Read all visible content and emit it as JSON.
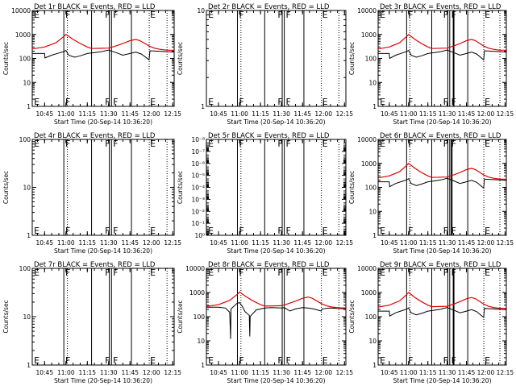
{
  "colors": {
    "events": "#000000",
    "lld": "#e00000",
    "frame": "#000000",
    "background": "#ffffff"
  },
  "common": {
    "xlabel": "Start Time (20-Sep-14 10:36:20)",
    "ylabel": "Counts/sec",
    "x_tick_labels": [
      "10:45",
      "11:00",
      "11:15",
      "11:30",
      "11:45",
      "12:00",
      "12:15"
    ],
    "x_tick_minutes": [
      645,
      660,
      675,
      690,
      705,
      720,
      735
    ],
    "x_range_minutes": [
      636.33,
      736
    ]
  },
  "markers": {
    "solid_lines": [
      658.5,
      678,
      690.5,
      692,
      706
    ],
    "dotted_lines": [
      661,
      718.5,
      731
    ],
    "labels": [
      {
        "text": "E",
        "x": 637,
        "align": "start"
      },
      {
        "text": "F",
        "x": 659,
        "align": "start"
      },
      {
        "text": "F",
        "x": 691.5,
        "align": "end"
      },
      {
        "text": "F",
        "x": 692.5,
        "align": "start"
      },
      {
        "text": "E",
        "x": 718.5,
        "align": "start"
      }
    ]
  },
  "chart_data": [
    {
      "type": "line",
      "title": "Det 1r BLACK = Events, RED = LLD",
      "yscale": "log",
      "ylim": [
        1,
        10000
      ],
      "y_ticks": [
        1,
        10,
        100,
        1000,
        10000
      ],
      "y_tick_labels": [
        "1",
        "10",
        "100",
        "1000",
        "10000"
      ],
      "profile": "A",
      "lld_peak": 1000,
      "events_peak": 160,
      "events_drop": 105,
      "third_line": 0
    },
    {
      "type": "line",
      "title": "Det 2r BLACK = Events, RED = LLD",
      "yscale": "log",
      "ylim": [
        1,
        10
      ],
      "y_ticks": [
        1,
        10
      ],
      "y_tick_labels": [
        "1",
        "10"
      ],
      "profile": "none"
    },
    {
      "type": "line",
      "title": "Det 3r BLACK = Events, RED = LLD",
      "yscale": "log",
      "ylim": [
        1,
        10000
      ],
      "y_ticks": [
        1,
        10,
        100,
        1000,
        10000
      ],
      "y_tick_labels": [
        "1",
        "10",
        "100",
        "1000",
        "10000"
      ],
      "profile": "A",
      "lld_peak": 1000,
      "events_peak": 160,
      "events_drop": 100,
      "third_line": 695
    },
    {
      "type": "line",
      "title": "Det 4r BLACK = Events, RED = LLD",
      "yscale": "log",
      "ylim": [
        1,
        100
      ],
      "y_ticks": [
        1,
        10,
        100
      ],
      "y_tick_labels": [
        "1",
        "10",
        "100"
      ],
      "profile": "none"
    },
    {
      "type": "line",
      "title": "Det 5r BLACK = Events, RED = LLD",
      "yscale": "log",
      "ylim": [
        1,
        1e-08
      ],
      "y_ticks": [
        1,
        0.1,
        0.01,
        0.001,
        0.0001,
        1e-05,
        1e-06,
        1e-07,
        1e-08
      ],
      "y_tick_labels": [
        "10⁰",
        "10⁻¹",
        "10⁻²",
        "10⁻³",
        "10⁻⁴",
        "10⁻⁵",
        "10⁻⁶",
        "10⁻⁷",
        "10⁻⁸"
      ],
      "profile": "none"
    },
    {
      "type": "line",
      "title": "Det 6r BLACK = Events, RED = LLD",
      "yscale": "log",
      "ylim": [
        1,
        10000
      ],
      "y_ticks": [
        1,
        10,
        100,
        1000,
        10000
      ],
      "y_tick_labels": [
        "1",
        "10",
        "100",
        "1000",
        "10000"
      ],
      "profile": "A",
      "lld_peak": 1000,
      "events_peak": 170,
      "events_drop": 100,
      "third_line": 693.5
    },
    {
      "type": "line",
      "title": "Det 7r BLACK = Events, RED = LLD",
      "yscale": "log",
      "ylim": [
        1,
        100
      ],
      "y_ticks": [
        1,
        10,
        100
      ],
      "y_tick_labels": [
        "1",
        "10",
        "100"
      ],
      "profile": "none"
    },
    {
      "type": "line",
      "title": "Det 8r BLACK = Events, RED = LLD",
      "yscale": "log",
      "ylim": [
        1,
        10000
      ],
      "y_ticks": [
        1,
        10,
        100,
        1000,
        10000
      ],
      "y_tick_labels": [
        "1",
        "10",
        "100",
        "1000",
        "10000"
      ],
      "profile": "B",
      "lld_peak": 1050,
      "events_peak": 380,
      "events_drop": 110,
      "third_line": 0
    },
    {
      "type": "line",
      "title": "Det 9r BLACK = Events, RED = LLD",
      "yscale": "log",
      "ylim": [
        1,
        10000
      ],
      "y_ticks": [
        1,
        10,
        100,
        1000,
        10000
      ],
      "y_tick_labels": [
        "1",
        "10",
        "100",
        "1000",
        "10000"
      ],
      "profile": "A",
      "lld_peak": 1000,
      "events_peak": 170,
      "events_drop": 100,
      "third_line": 695
    }
  ]
}
